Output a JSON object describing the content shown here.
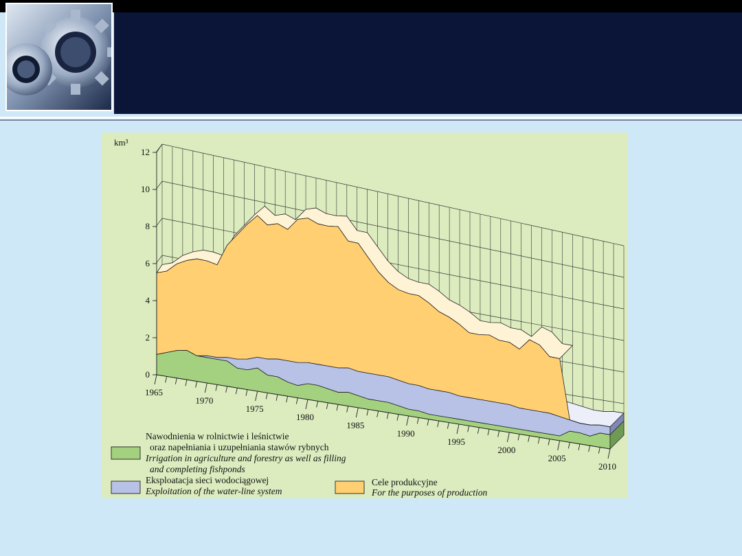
{
  "chart_data": {
    "type": "area",
    "stacked": true,
    "projection": "3d-perspective",
    "ylabel": "km³",
    "ylim": [
      0,
      12
    ],
    "y_ticks": [
      0,
      2,
      4,
      6,
      8,
      10,
      12
    ],
    "x_tick_labels": [
      "1965",
      "1970",
      "1975",
      "1980",
      "1985",
      "1990",
      "1995",
      "2000",
      "2005",
      "2010"
    ],
    "x": [
      1965,
      1966,
      1967,
      1968,
      1969,
      1970,
      1971,
      1972,
      1973,
      1974,
      1975,
      1976,
      1977,
      1978,
      1979,
      1980,
      1981,
      1982,
      1983,
      1984,
      1985,
      1986,
      1987,
      1988,
      1989,
      1990,
      1991,
      1992,
      1993,
      1994,
      1995,
      1996,
      1997,
      1998,
      1999,
      2000,
      2001,
      2002,
      2003,
      2004,
      2005,
      2006,
      2007,
      2008,
      2009,
      2010
    ],
    "series": [
      {
        "name": "Nawodnienia w rolnictwie i leśnictwie oraz napełniania i uzupełniania stawów rybnych / Irrigation in agriculture and forestry as well as filling and completing fishponds",
        "color": "#a3d17f",
        "values": [
          1.1,
          1.3,
          1.5,
          1.6,
          1.4,
          1.4,
          1.4,
          1.4,
          1.1,
          1.1,
          1.3,
          1.0,
          1.0,
          0.8,
          0.7,
          0.9,
          0.9,
          0.8,
          0.7,
          0.8,
          0.7,
          0.6,
          0.6,
          0.6,
          0.5,
          0.4,
          0.4,
          0.3,
          0.3,
          0.3,
          0.3,
          0.3,
          0.3,
          0.3,
          0.3,
          0.3,
          0.3,
          0.3,
          0.3,
          0.3,
          0.3,
          0.7,
          0.7,
          0.6,
          0.9,
          0.9
        ]
      },
      {
        "name": "Eksploatacja sieci wodociągowej / Exploitation of the water-line system",
        "color": "#b8c1e6",
        "values": [
          0.0,
          0.0,
          0.0,
          0.0,
          0.0,
          0.1,
          0.1,
          0.2,
          0.5,
          0.6,
          0.6,
          0.9,
          1.0,
          1.2,
          1.3,
          1.2,
          1.2,
          1.3,
          1.4,
          1.4,
          1.4,
          1.5,
          1.5,
          1.5,
          1.5,
          1.5,
          1.5,
          1.5,
          1.5,
          1.5,
          1.4,
          1.4,
          1.4,
          1.4,
          1.4,
          1.4,
          1.3,
          1.3,
          1.3,
          1.3,
          1.2,
          0.7,
          0.6,
          0.7,
          0.5,
          0.5
        ]
      },
      {
        "name": "Cele produkcyjne / For the purposes of production",
        "color": "#ffcf72",
        "values": [
          4.4,
          4.4,
          4.7,
          4.9,
          5.3,
          5.2,
          5.1,
          6.2,
          6.9,
          7.5,
          7.9,
          7.5,
          7.6,
          7.4,
          8.1,
          8.2,
          8.0,
          8.0,
          8.1,
          7.3,
          7.4,
          6.7,
          6.0,
          5.5,
          5.3,
          5.3,
          5.3,
          5.1,
          4.7,
          4.5,
          4.3,
          3.9,
          3.9,
          4.0,
          3.8,
          3.8,
          3.6,
          4.3,
          4.1,
          3.5,
          3.6,
          0,
          0,
          0,
          0,
          0
        ]
      }
    ],
    "legend": [
      {
        "key": "irrigation",
        "color": "#a3d17f",
        "pl": [
          "Nawodnienia w rolnictwie i leśnictwie",
          "oraz napełniania i uzupełniania stawów rybnych"
        ],
        "en": [
          "Irrigation in agriculture and forestry as well as filling",
          "and completing fishponds"
        ]
      },
      {
        "key": "waterline",
        "color": "#b8c1e6",
        "pl": [
          "Eksploatacja sieci wodociągowej"
        ],
        "en": [
          "Exploitation of the water-line system"
        ]
      },
      {
        "key": "production",
        "color": "#ffcf72",
        "pl": [
          "Cele produkcyjne"
        ],
        "en": [
          "For the purposes of production"
        ]
      }
    ],
    "grid": true,
    "legend_position": "bottom-left"
  }
}
